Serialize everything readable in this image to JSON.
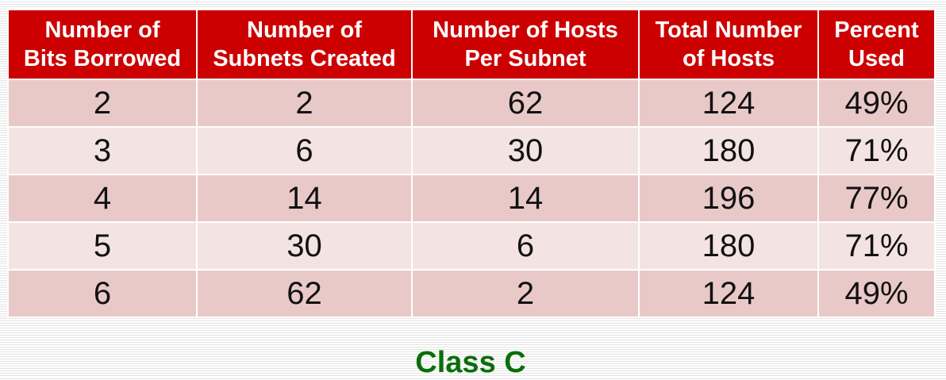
{
  "table": {
    "headers": [
      [
        "Number of",
        "Bits Borrowed"
      ],
      [
        "Number of",
        "Subnets Created"
      ],
      [
        "Number of Hosts",
        "Per Subnet"
      ],
      [
        "Total Number",
        "of Hosts"
      ],
      [
        "Percent",
        "Used"
      ]
    ],
    "rows": [
      [
        "2",
        "2",
        "62",
        "124",
        "49%"
      ],
      [
        "3",
        "6",
        "30",
        "180",
        "71%"
      ],
      [
        "4",
        "14",
        "14",
        "196",
        "77%"
      ],
      [
        "5",
        "30",
        "6",
        "180",
        "71%"
      ],
      [
        "6",
        "62",
        "2",
        "124",
        "49%"
      ]
    ]
  },
  "caption": "Class C",
  "colors": {
    "header_bg": "#cc0000",
    "header_text": "#ffffff",
    "row_dark": "#e9c9c8",
    "row_light": "#f4e3e3",
    "caption_text": "#0a6e0a"
  }
}
